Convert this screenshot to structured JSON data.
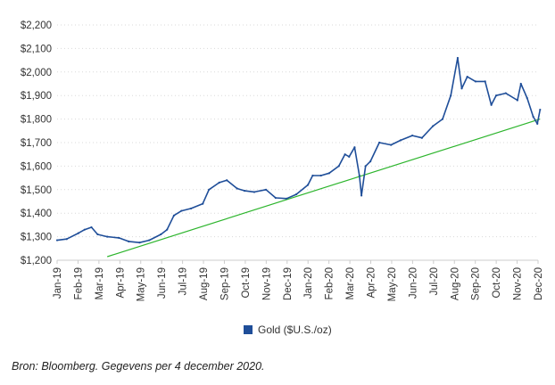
{
  "chart_data": {
    "type": "line",
    "y_ticks": [
      "$1,200",
      "$1,300",
      "$1,400",
      "$1,500",
      "$1,600",
      "$1,700",
      "$1,800",
      "$1,900",
      "$2,000",
      "$2,100",
      "$2,200"
    ],
    "ylim": [
      1200,
      2200
    ],
    "x_ticks": [
      "Jan-19",
      "Feb-19",
      "Mar-19",
      "Apr-19",
      "May-19",
      "Jun-19",
      "Jul-19",
      "Aug-19",
      "Sep-19",
      "Oct-19",
      "Nov-19",
      "Dec-19",
      "Jan-20",
      "Feb-20",
      "Mar-20",
      "Apr-20",
      "May-20",
      "Jun-20",
      "Jul-20",
      "Aug-20",
      "Sep-20",
      "Oct-20",
      "Nov-20",
      "Dec-20"
    ],
    "grid": "horizontal dotted",
    "legend_position": "bottom",
    "series": [
      {
        "name": "Gold ($U.S./oz)",
        "color": "#1f4e99",
        "x": [
          "2019-01-01",
          "2019-01-15",
          "2019-02-01",
          "2019-02-10",
          "2019-02-20",
          "2019-03-01",
          "2019-03-15",
          "2019-04-01",
          "2019-04-15",
          "2019-05-01",
          "2019-05-15",
          "2019-06-01",
          "2019-06-10",
          "2019-06-20",
          "2019-07-01",
          "2019-07-15",
          "2019-08-01",
          "2019-08-10",
          "2019-08-25",
          "2019-09-05",
          "2019-09-20",
          "2019-10-01",
          "2019-10-15",
          "2019-11-01",
          "2019-11-15",
          "2019-12-01",
          "2019-12-15",
          "2020-01-01",
          "2020-01-08",
          "2020-01-20",
          "2020-02-01",
          "2020-02-15",
          "2020-02-24",
          "2020-03-01",
          "2020-03-09",
          "2020-03-16",
          "2020-03-19",
          "2020-03-25",
          "2020-04-01",
          "2020-04-14",
          "2020-05-01",
          "2020-05-15",
          "2020-06-01",
          "2020-06-15",
          "2020-07-01",
          "2020-07-15",
          "2020-07-27",
          "2020-08-06",
          "2020-08-12",
          "2020-08-20",
          "2020-09-01",
          "2020-09-15",
          "2020-09-24",
          "2020-10-01",
          "2020-10-15",
          "2020-11-01",
          "2020-11-06",
          "2020-11-15",
          "2020-11-24",
          "2020-11-30",
          "2020-12-04"
        ],
        "values": [
          1285,
          1290,
          1315,
          1330,
          1340,
          1310,
          1300,
          1295,
          1280,
          1275,
          1285,
          1310,
          1330,
          1390,
          1410,
          1420,
          1440,
          1500,
          1530,
          1540,
          1505,
          1495,
          1490,
          1500,
          1465,
          1462,
          1480,
          1520,
          1560,
          1560,
          1570,
          1600,
          1650,
          1640,
          1680,
          1560,
          1475,
          1600,
          1620,
          1700,
          1690,
          1710,
          1730,
          1720,
          1770,
          1800,
          1900,
          2060,
          1930,
          1980,
          1960,
          1960,
          1860,
          1900,
          1910,
          1880,
          1950,
          1890,
          1810,
          1780,
          1840
        ]
      },
      {
        "name": "",
        "color": "#2db52d",
        "x": [
          "2019-03-15",
          "2020-12-04"
        ],
        "values": [
          1215,
          1800
        ]
      }
    ]
  },
  "legend": {
    "label": "Gold ($U.S./oz)",
    "swatch_color": "#1f4e99"
  },
  "source_note": "Bron: Bloomberg. Gegevens per 4 december 2020."
}
